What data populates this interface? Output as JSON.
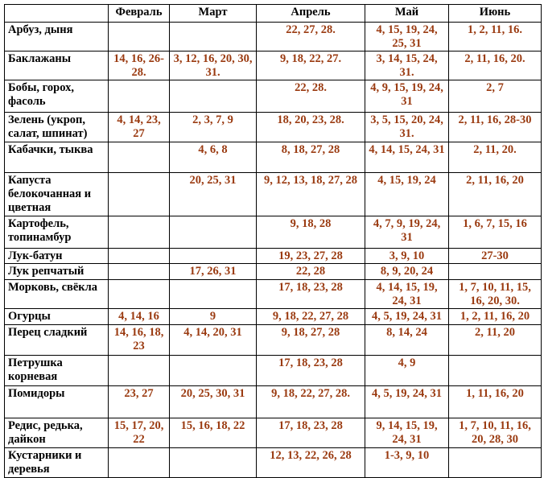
{
  "table": {
    "headers": [
      "",
      "Февраль",
      "Март",
      "Апрель",
      "Май",
      "Июнь"
    ],
    "rows": [
      {
        "name": "Арбуз, дыня",
        "cells": [
          "",
          "",
          "22, 27, 28.",
          "4, 15, 19, 24, 25, 31",
          "1, 2, 11, 16."
        ]
      },
      {
        "name": "Баклажаны",
        "cells": [
          "14, 16, 26-28.",
          "3, 12, 16, 20, 30, 31.",
          "9, 18, 22, 27.",
          "3, 14, 15, 24, 31.",
          "2, 11, 16, 20."
        ]
      },
      {
        "name": "Бобы, горох, фасоль",
        "cells": [
          "",
          "",
          "22, 28.",
          "4, 9, 15, 19, 24, 31",
          "2, 7"
        ]
      },
      {
        "name": "Зелень (укроп, салат, шпинат)",
        "cells": [
          "4, 14, 23, 27",
          "2, 3, 7, 9",
          "18, 20, 23, 28.",
          "3, 5, 15, 20, 24, 31.",
          "2, 11, 16, 28-30"
        ]
      },
      {
        "name": "Кабачки, тыква",
        "cells": [
          "",
          "4, 6, 8",
          "8, 18, 27, 28",
          "4, 14, 15, 24, 31",
          "2, 11, 20."
        ]
      },
      {
        "name": "Капуста белокочанная и цветная",
        "cells": [
          "",
          "20, 25, 31",
          "9, 12, 13, 18, 27, 28",
          "4, 15, 19, 24",
          "2, 11, 16, 20"
        ]
      },
      {
        "name": "Картофель, топинамбур",
        "cells": [
          "",
          "",
          "9, 18, 28",
          "4, 7, 9, 19, 24, 31",
          "1, 6, 7, 15, 16"
        ]
      },
      {
        "name": "Лук-батун",
        "cells": [
          "",
          "",
          "19, 23, 27, 28",
          "3, 9, 10",
          "27-30"
        ]
      },
      {
        "name": "Лук репчатый",
        "cells": [
          "",
          "17, 26, 31",
          "22, 28",
          "8, 9, 20, 24",
          ""
        ]
      },
      {
        "name": "Морковь, свёкла",
        "cells": [
          "",
          "",
          "17, 18, 23, 28",
          "4, 14, 15, 19, 24, 31",
          "1, 7, 10, 11, 15, 16, 20, 30."
        ]
      },
      {
        "name": "Огурцы",
        "cells": [
          "4, 14, 16",
          "9",
          "9, 18, 22, 27, 28",
          "4, 5, 19, 24, 31",
          "1, 2, 11, 16, 20"
        ]
      },
      {
        "name": "Перец сладкий",
        "cells": [
          "14, 16, 18, 23",
          "4, 14, 20, 31",
          "9, 18, 27, 28",
          "8, 14, 24",
          "2, 11, 20"
        ]
      },
      {
        "name": "Петрушка корневая",
        "cells": [
          "",
          "",
          "17, 18, 23, 28",
          "4, 9",
          ""
        ]
      },
      {
        "name": "Помидоры",
        "cells": [
          "23, 27",
          "20, 25, 30, 31",
          "9, 18, 22, 27, 28.",
          "4, 5, 19, 24, 31",
          "1, 11, 16, 20"
        ]
      },
      {
        "name": "Редис, редька, дайкон",
        "cells": [
          "15, 17, 20, 22",
          "15, 16, 18, 22",
          "17, 18, 23, 28",
          "9, 14, 15, 19, 24, 31",
          "1, 7, 10, 11, 16, 20, 28, 30"
        ]
      },
      {
        "name": "Кустарники и деревья",
        "cells": [
          "",
          "",
          "12, 13, 22, 26, 28",
          "1-3, 9, 10",
          ""
        ]
      }
    ],
    "colors": {
      "text": "#000000",
      "values": "#9a3a10",
      "border": "#000000"
    }
  }
}
